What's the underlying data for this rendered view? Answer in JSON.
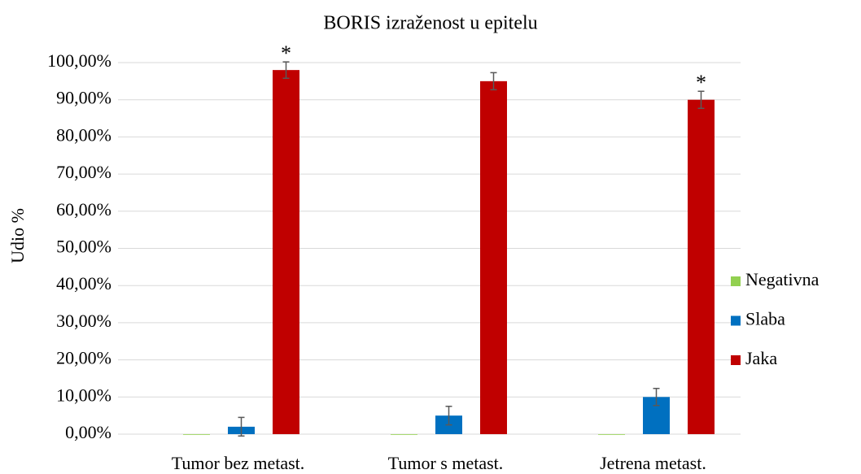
{
  "chart_data": {
    "type": "bar",
    "title": "BORIS izraženost u epitelu",
    "y_label": "Udio %",
    "categories": [
      "Tumor bez metast.",
      "Tumor s metast.",
      "Jetrena metast."
    ],
    "series": [
      {
        "name": "Negativna",
        "color": "#92d050",
        "values": [
          0,
          0,
          0
        ]
      },
      {
        "name": "Slaba",
        "color": "#0070c0",
        "values": [
          2,
          5,
          10
        ],
        "errors": [
          2.5,
          2.5,
          2.3
        ]
      },
      {
        "name": "Jaka",
        "color": "#c00000",
        "values": [
          98,
          95,
          90
        ],
        "errors": [
          2.2,
          2.3,
          2.3
        ]
      }
    ],
    "annotations": [
      {
        "text": "*",
        "series": 2,
        "category": 0
      },
      {
        "text": "*",
        "series": 2,
        "category": 2
      }
    ],
    "ylim": [
      0,
      100
    ],
    "yticks": [
      {
        "value": 0,
        "label": "0,00%"
      },
      {
        "value": 10,
        "label": "10,00%"
      },
      {
        "value": 20,
        "label": "20,00%"
      },
      {
        "value": 30,
        "label": "30,00%"
      },
      {
        "value": 40,
        "label": "40,00%"
      },
      {
        "value": 50,
        "label": "50,00%"
      },
      {
        "value": 60,
        "label": "60,00%"
      },
      {
        "value": 70,
        "label": "70,00%"
      },
      {
        "value": 80,
        "label": "80,00%"
      },
      {
        "value": 90,
        "label": "90,00%"
      },
      {
        "value": 100,
        "label": "100,00%"
      }
    ],
    "grid": true,
    "legend": "right"
  }
}
